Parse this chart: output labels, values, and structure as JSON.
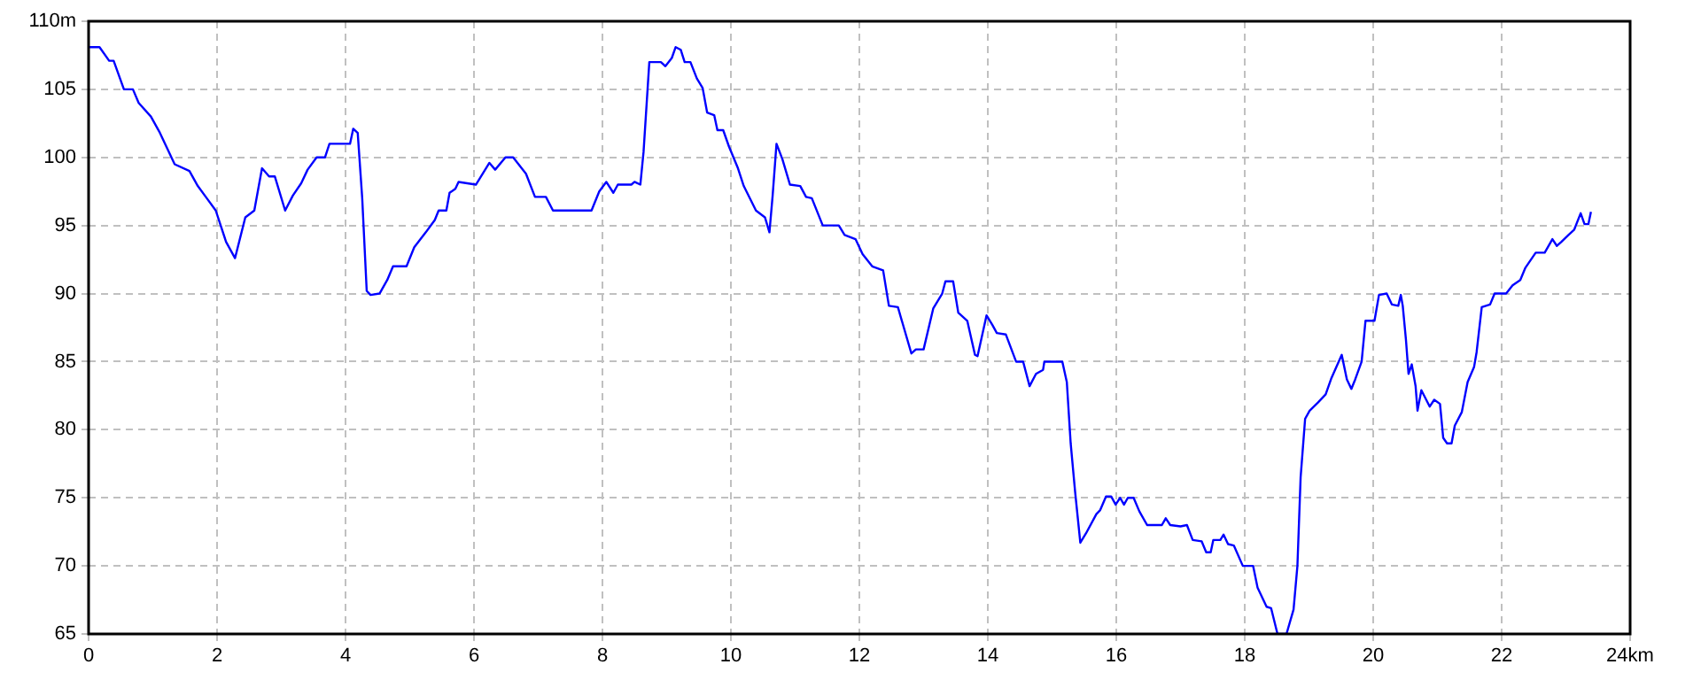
{
  "chart_data": {
    "type": "line",
    "xlim": [
      0,
      24
    ],
    "ylim": [
      65,
      110
    ],
    "xticks": [
      0,
      2,
      4,
      6,
      8,
      10,
      12,
      14,
      16,
      18,
      20,
      22,
      {
        "value": 24,
        "label": "24km"
      }
    ],
    "yticks": [
      65,
      70,
      75,
      80,
      85,
      90,
      95,
      100,
      105,
      {
        "value": 110,
        "label": "110m"
      }
    ],
    "grid": true,
    "legend": false,
    "marker": "none",
    "line_style": "solid",
    "series": [
      {
        "color": "#0000ff",
        "x": [
          0,
          0.17,
          0.32,
          0.39,
          0.55,
          0.69,
          0.78,
          0.97,
          1.1,
          1.34,
          1.57,
          1.7,
          1.84,
          1.98,
          2.14,
          2.28,
          2.44,
          2.58,
          2.7,
          2.81,
          2.9,
          3.06,
          3.18,
          3.31,
          3.41,
          3.55,
          3.68,
          3.75,
          4.07,
          4.12,
          4.19,
          4.26,
          4.33,
          4.39,
          4.53,
          4.65,
          4.74,
          4.95,
          5.07,
          5.25,
          5.39,
          5.45,
          5.57,
          5.62,
          5.71,
          5.76,
          6.03,
          6.24,
          6.33,
          6.49,
          6.61,
          6.81,
          6.95,
          7.12,
          7.23,
          7.83,
          7.95,
          8.06,
          8.17,
          8.24,
          8.45,
          8.5,
          8.59,
          8.64,
          8.73,
          8.91,
          8.98,
          9.08,
          9.14,
          9.22,
          9.28,
          9.37,
          9.47,
          9.56,
          9.63,
          9.74,
          9.79,
          9.88,
          9.97,
          10.11,
          10.2,
          10.39,
          10.53,
          10.6,
          10.65,
          10.71,
          10.8,
          10.92,
          11.08,
          11.17,
          11.26,
          11.43,
          11.68,
          11.77,
          11.94,
          12.05,
          12.2,
          12.37,
          12.46,
          12.6,
          12.81,
          12.88,
          13,
          13.15,
          13.29,
          13.34,
          13.46,
          13.54,
          13.68,
          13.8,
          13.84,
          13.98,
          14.07,
          14.14,
          14.28,
          14.44,
          14.55,
          14.65,
          14.75,
          14.86,
          14.88,
          15.16,
          15.23,
          15.29,
          15.36,
          15.44,
          15.53,
          15.69,
          15.75,
          15.84,
          15.92,
          15.99,
          16.06,
          16.12,
          16.18,
          16.27,
          16.36,
          16.48,
          16.71,
          16.77,
          16.84,
          17,
          17.1,
          17.19,
          17.33,
          17.4,
          17.47,
          17.51,
          17.62,
          17.67,
          17.74,
          17.83,
          17.97,
          18.13,
          18.2,
          18.34,
          18.41,
          18.51,
          18.65,
          18.76,
          18.82,
          18.87,
          18.94,
          19.01,
          19.14,
          19.26,
          19.35,
          19.51,
          19.59,
          19.66,
          19.72,
          19.82,
          19.88,
          20.02,
          20.09,
          20.21,
          20.29,
          20.39,
          20.43,
          20.46,
          20.51,
          20.55,
          20.6,
          20.66,
          20.69,
          20.75,
          20.88,
          20.95,
          21.04,
          21.09,
          21.15,
          21.22,
          21.27,
          21.38,
          21.47,
          21.57,
          21.61,
          21.69,
          21.82,
          21.89,
          22.07,
          22.17,
          22.29,
          22.37,
          22.53,
          22.67,
          22.79,
          22.86,
          22.93,
          23.04,
          23.13,
          23.23,
          23.29,
          23.35,
          23.39
        ],
        "values": [
          108.1,
          108.1,
          107.1,
          107.1,
          105,
          105,
          104,
          103,
          101.9,
          99.5,
          99,
          97.9,
          97,
          96.1,
          93.8,
          92.6,
          95.6,
          96.1,
          99.2,
          98.6,
          98.6,
          96.1,
          97.2,
          98.1,
          99.1,
          100,
          100,
          101,
          101,
          102.1,
          101.8,
          97,
          90.2,
          89.9,
          90,
          91,
          92,
          92,
          93.4,
          94.5,
          95.4,
          96.1,
          96.1,
          97.4,
          97.7,
          98.2,
          98,
          99.6,
          99.1,
          100,
          100,
          98.8,
          97.1,
          97.1,
          96.1,
          96.1,
          97.5,
          98.2,
          97.4,
          98,
          98,
          98.2,
          98,
          100.4,
          107,
          107,
          106.7,
          107.3,
          108.1,
          107.9,
          107,
          107,
          105.8,
          105.1,
          103.3,
          103.1,
          102,
          102,
          100.8,
          99.2,
          97.9,
          96.1,
          95.6,
          94.5,
          97.2,
          101,
          99.9,
          98,
          97.9,
          97.1,
          97,
          95,
          95,
          94.3,
          94,
          92.9,
          92,
          91.7,
          89.1,
          89,
          85.6,
          85.9,
          85.9,
          88.9,
          90,
          90.9,
          90.9,
          88.6,
          88,
          85.5,
          85.4,
          88.4,
          87.7,
          87.1,
          87,
          85,
          85,
          83.2,
          84.1,
          84.4,
          85,
          85,
          83.5,
          79,
          75.4,
          71.7,
          72.4,
          73.8,
          74.1,
          75.1,
          75.1,
          74.5,
          75,
          74.5,
          75,
          75,
          74,
          73,
          73,
          73.5,
          73,
          72.9,
          73,
          71.9,
          71.8,
          71,
          71,
          71.9,
          71.9,
          72.3,
          71.6,
          71.5,
          70,
          70,
          68.4,
          67,
          66.9,
          65,
          65,
          66.8,
          70,
          76.5,
          80.8,
          81.4,
          82,
          82.6,
          83.8,
          85.5,
          83.7,
          83,
          83.7,
          85,
          88,
          88,
          89.9,
          90,
          89.2,
          89.1,
          89.9,
          89.1,
          86.6,
          84.1,
          84.8,
          83.2,
          81.4,
          82.9,
          81.7,
          82.2,
          81.9,
          79.4,
          79,
          79,
          80.3,
          81.3,
          83.5,
          84.6,
          85.7,
          89,
          89.2,
          90,
          90,
          90.6,
          91,
          91.9,
          93,
          93,
          94,
          93.5,
          93.8,
          94.3,
          94.7,
          95.9,
          95.1,
          95.1,
          96
        ]
      }
    ]
  }
}
